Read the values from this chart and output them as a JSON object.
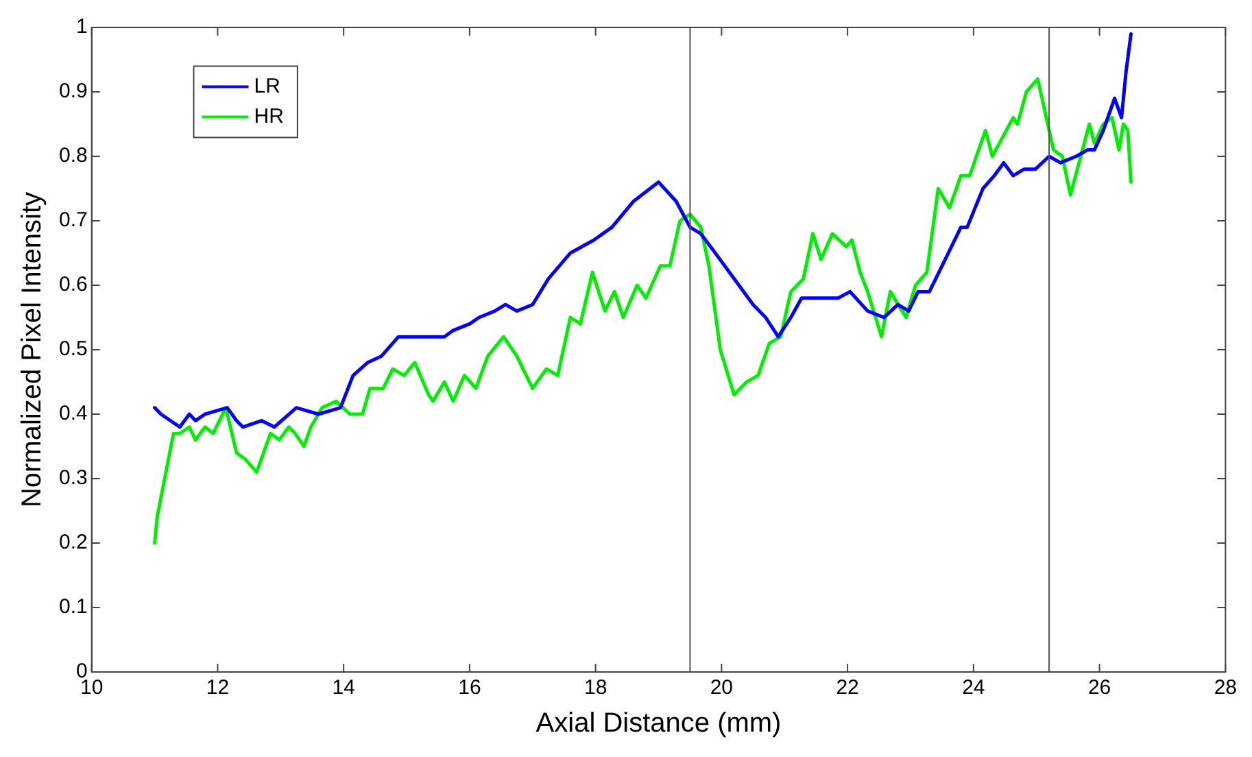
{
  "chart_data": {
    "type": "line",
    "xlabel": "Axial Distance (mm)",
    "ylabel": "Normalized Pixel Intensity",
    "xlim": [
      10,
      28
    ],
    "xticks": [
      10,
      12,
      14,
      16,
      18,
      20,
      22,
      24,
      26,
      28
    ],
    "ylim": [
      0,
      1
    ],
    "yticks": [
      0,
      0.1,
      0.2,
      0.3,
      0.4,
      0.5,
      0.6,
      0.7,
      0.8,
      0.9,
      1
    ],
    "grid": false,
    "legend": "top left",
    "marker": "none",
    "line_style": "solid",
    "ref_lines": [
      {
        "axis": "x",
        "value": 19.5,
        "color": "#555555"
      },
      {
        "axis": "x",
        "value": 25.2,
        "color": "#555555"
      }
    ],
    "series": [
      {
        "name": "LR",
        "color": "#0000ff",
        "x": [
          11.0,
          11.1,
          11.4,
          11.55,
          11.65,
          11.8,
          12.15,
          12.3,
          12.4,
          12.7,
          12.9,
          13.25,
          13.6,
          13.95,
          14.15,
          14.38,
          14.6,
          14.87,
          15.3,
          15.6,
          15.74,
          16.0,
          16.15,
          16.4,
          16.57,
          16.75,
          17.0,
          17.25,
          17.6,
          17.97,
          18.26,
          18.6,
          19.0,
          19.28,
          19.5,
          19.67,
          19.9,
          20.2,
          20.5,
          20.7,
          20.9,
          21.1,
          21.27,
          21.56,
          21.85,
          22.04,
          22.32,
          22.58,
          22.8,
          22.97,
          23.12,
          23.3,
          23.5,
          23.8,
          23.9,
          24.15,
          24.33,
          24.48,
          24.63,
          24.8,
          24.98,
          25.2,
          25.38,
          25.63,
          25.81,
          25.92,
          26.06,
          26.24,
          26.35,
          26.42,
          26.5
        ],
        "values": [
          0.41,
          0.4,
          0.38,
          0.4,
          0.39,
          0.4,
          0.41,
          0.39,
          0.38,
          0.39,
          0.38,
          0.41,
          0.4,
          0.41,
          0.46,
          0.48,
          0.49,
          0.52,
          0.52,
          0.52,
          0.53,
          0.54,
          0.55,
          0.56,
          0.57,
          0.56,
          0.57,
          0.61,
          0.65,
          0.67,
          0.69,
          0.73,
          0.76,
          0.73,
          0.69,
          0.68,
          0.65,
          0.61,
          0.57,
          0.55,
          0.52,
          0.55,
          0.58,
          0.58,
          0.58,
          0.59,
          0.56,
          0.55,
          0.57,
          0.56,
          0.59,
          0.59,
          0.63,
          0.69,
          0.69,
          0.75,
          0.77,
          0.79,
          0.77,
          0.78,
          0.78,
          0.8,
          0.79,
          0.8,
          0.81,
          0.81,
          0.84,
          0.89,
          0.86,
          0.93,
          0.99
        ]
      },
      {
        "name": "HR",
        "color": "#00ee00",
        "x": [
          11.0,
          11.04,
          11.18,
          11.3,
          11.4,
          11.55,
          11.65,
          11.8,
          11.93,
          12.13,
          12.3,
          12.44,
          12.62,
          12.84,
          12.98,
          13.13,
          13.23,
          13.37,
          13.48,
          13.66,
          13.88,
          14.1,
          14.3,
          14.42,
          14.63,
          14.78,
          14.96,
          15.13,
          15.35,
          15.42,
          15.6,
          15.74,
          15.92,
          16.1,
          16.29,
          16.54,
          16.75,
          17.0,
          17.22,
          17.4,
          17.6,
          17.76,
          17.95,
          18.15,
          18.3,
          18.44,
          18.66,
          18.8,
          19.03,
          19.18,
          19.34,
          19.5,
          19.67,
          19.8,
          19.98,
          20.2,
          20.4,
          20.58,
          20.76,
          20.94,
          21.1,
          21.3,
          21.45,
          21.58,
          21.76,
          21.98,
          22.07,
          22.2,
          22.32,
          22.54,
          22.68,
          22.93,
          23.08,
          23.26,
          23.44,
          23.62,
          23.8,
          23.94,
          24.19,
          24.3,
          24.63,
          24.7,
          24.84,
          25.02,
          25.27,
          25.41,
          25.54,
          25.84,
          25.92,
          26.06,
          26.2,
          26.31,
          26.38,
          26.45,
          26.5
        ],
        "values": [
          0.2,
          0.24,
          0.31,
          0.37,
          0.37,
          0.38,
          0.36,
          0.38,
          0.37,
          0.41,
          0.34,
          0.33,
          0.31,
          0.37,
          0.36,
          0.38,
          0.37,
          0.35,
          0.38,
          0.41,
          0.42,
          0.4,
          0.4,
          0.44,
          0.44,
          0.47,
          0.46,
          0.48,
          0.43,
          0.42,
          0.45,
          0.42,
          0.46,
          0.44,
          0.49,
          0.52,
          0.49,
          0.44,
          0.47,
          0.46,
          0.55,
          0.54,
          0.62,
          0.56,
          0.59,
          0.55,
          0.6,
          0.58,
          0.63,
          0.63,
          0.7,
          0.71,
          0.69,
          0.63,
          0.5,
          0.43,
          0.45,
          0.46,
          0.51,
          0.52,
          0.59,
          0.61,
          0.68,
          0.64,
          0.68,
          0.66,
          0.67,
          0.62,
          0.59,
          0.52,
          0.59,
          0.55,
          0.6,
          0.62,
          0.75,
          0.72,
          0.77,
          0.77,
          0.84,
          0.8,
          0.86,
          0.85,
          0.9,
          0.92,
          0.81,
          0.8,
          0.74,
          0.85,
          0.82,
          0.85,
          0.86,
          0.81,
          0.85,
          0.84,
          0.76
        ]
      }
    ]
  }
}
